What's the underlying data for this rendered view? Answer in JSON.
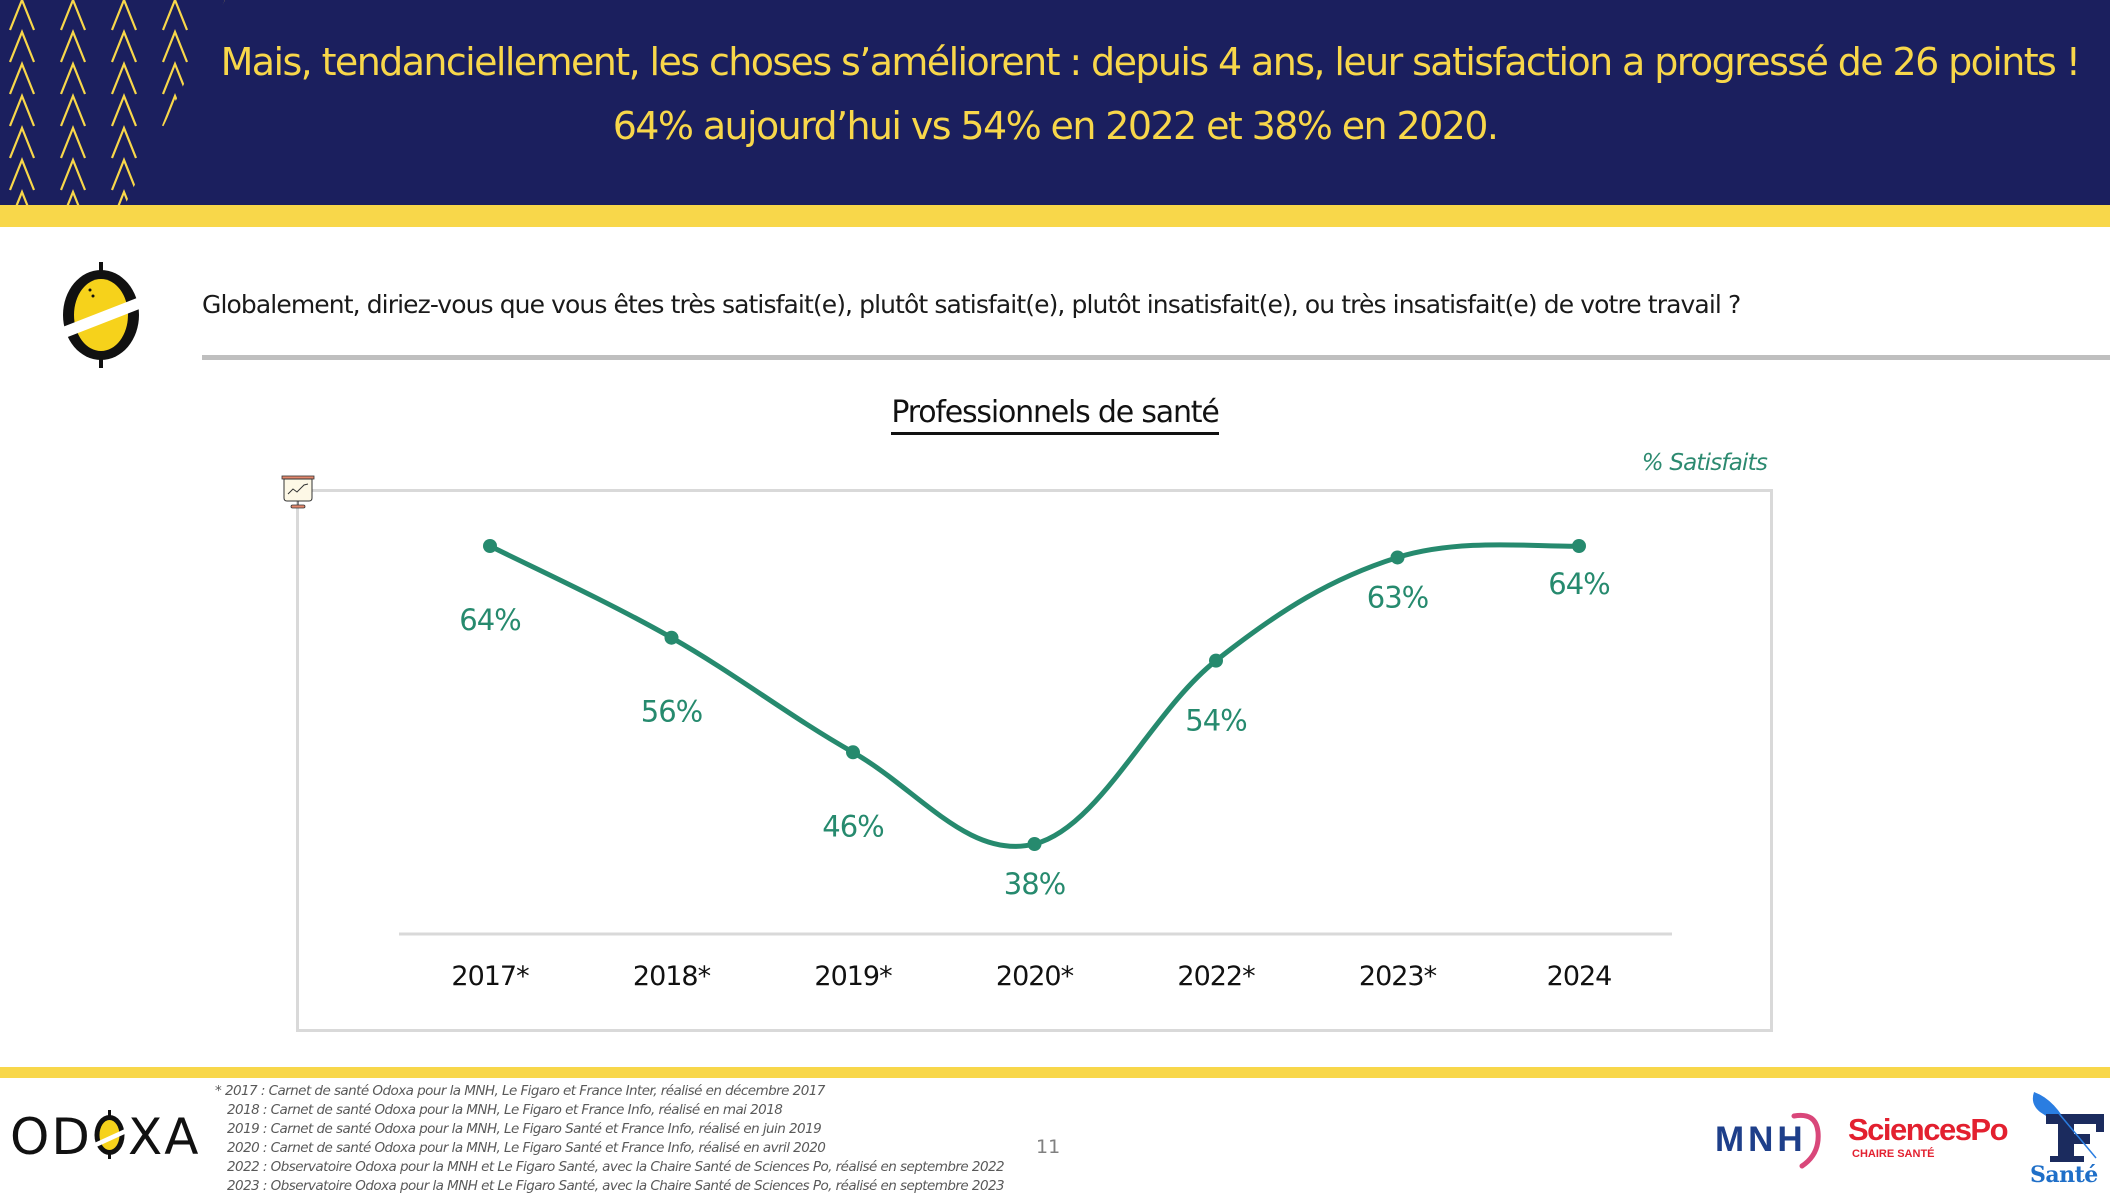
{
  "header": {
    "title_line1": "Mais, tendanciellement, les choses s’améliorent : depuis 4 ans, leur satisfaction a progressé de 26 points !",
    "title_line2": "64% aujourd’hui vs 54% en 2022 et 38% en 2020."
  },
  "question": {
    "icon": "odoxa-question-icon",
    "text": "Globalement, diriez-vous que vous êtes très satisfait(e), plutôt satisfait(e), plutôt insatisfait(e), ou très insatisfait(e) de votre travail ?"
  },
  "colors": {
    "navy": "#1b1f5e",
    "yellow": "#f8d74a",
    "series": "#268a6e",
    "gridline": "#d9d9d9"
  },
  "chart_data": {
    "type": "line",
    "title": "Professionnels de santé",
    "unit_label": "% Satisfaits",
    "xlabel": "",
    "ylabel": "",
    "categories": [
      "2017*",
      "2018*",
      "2019*",
      "2020*",
      "2022*",
      "2023*",
      "2024"
    ],
    "series": [
      {
        "name": "% Satisfaits",
        "values": [
          64,
          56,
          46,
          38,
          54,
          63,
          64
        ],
        "labels": [
          "64%",
          "56%",
          "46%",
          "38%",
          "54%",
          "63%",
          "64%"
        ],
        "smooth": true
      }
    ],
    "ylim": [
      38,
      64
    ],
    "grid": false,
    "legend": "top-right"
  },
  "footer": {
    "logo": "ODOXA",
    "footnotes": [
      "* 2017 : Carnet de santé Odoxa pour la MNH, Le Figaro et France Inter, réalisé en décembre 2017",
      "2018 : Carnet de santé Odoxa pour la MNH, Le Figaro et France Info, réalisé en mai 2018",
      "2019 : Carnet de santé Odoxa pour la MNH, Le Figaro Santé et France Info, réalisé en juin 2019",
      "2020 : Carnet de santé Odoxa pour la MNH, Le Figaro Santé et France Info, réalisé en avril 2020",
      "2022 : Observatoire Odoxa pour la MNH et Le Figaro Santé, avec la Chaire Santé de Sciences Po, réalisé en septembre 2022",
      "2023 : Observatoire Odoxa pour la MNH et Le Figaro Santé, avec la Chaire Santé de Sciences Po, réalisé en septembre 2023"
    ],
    "page_number": "11",
    "partners": {
      "mnh": "MNH",
      "sciencespo": "SciencesPo",
      "sciencespo_sub": "CHAIRE SANTÉ",
      "figaro": "Santé"
    }
  }
}
